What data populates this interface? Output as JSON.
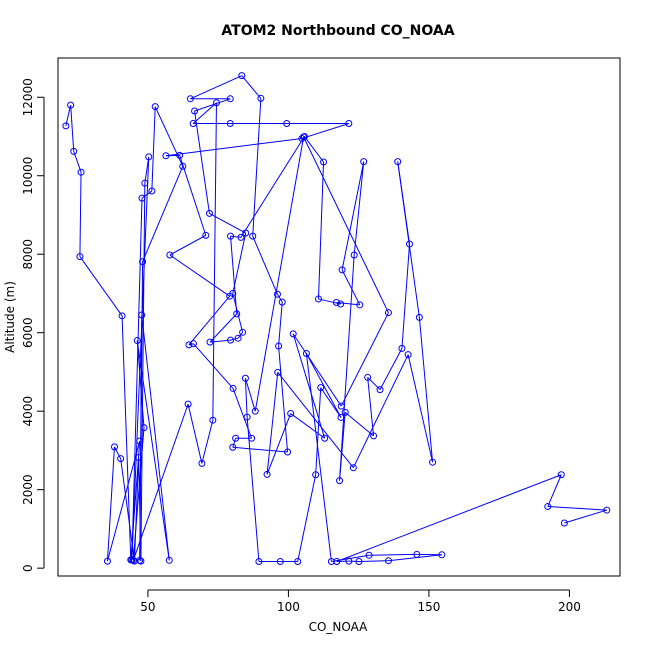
{
  "chart_data": {
    "type": "line",
    "title": "ATOM2 Northbound CO_NOAA",
    "xlabel": "CO_NOAA",
    "ylabel": "Altitude (m)",
    "xlim": [
      18,
      218
    ],
    "ylim": [
      -200,
      13000
    ],
    "x_ticks": [
      50,
      100,
      150,
      200
    ],
    "y_ticks": [
      0,
      2000,
      4000,
      6000,
      8000,
      10000,
      12000
    ],
    "line_color": "#0000ff",
    "marker": "open-circle",
    "points": [
      [
        20.8,
        11270
      ],
      [
        22.5,
        11800
      ],
      [
        23.6,
        10620
      ],
      [
        26.2,
        10090
      ],
      [
        25.8,
        7940
      ],
      [
        40.8,
        6430
      ],
      [
        43.9,
        210
      ],
      [
        47.1,
        3240
      ],
      [
        35.6,
        180
      ],
      [
        38.1,
        3090
      ],
      [
        40.3,
        2790
      ],
      [
        45.2,
        180
      ],
      [
        46.7,
        2820
      ],
      [
        47.5,
        180
      ],
      [
        48.9,
        9810
      ],
      [
        50.3,
        10480
      ],
      [
        44.3,
        210
      ],
      [
        47.9,
        9430
      ],
      [
        51.4,
        9610
      ],
      [
        52.6,
        11760
      ],
      [
        62.4,
        10240
      ],
      [
        48.1,
        7810
      ],
      [
        47.1,
        200
      ],
      [
        47.8,
        6450
      ],
      [
        57.6,
        200
      ],
      [
        46.2,
        5800
      ],
      [
        48.6,
        3580
      ],
      [
        44.8,
        200
      ],
      [
        64.3,
        4180
      ],
      [
        69.2,
        2670
      ],
      [
        73.1,
        3770
      ],
      [
        74.4,
        11860
      ],
      [
        66.1,
        11330
      ],
      [
        79.3,
        11330
      ],
      [
        99.4,
        11330
      ],
      [
        121.5,
        11330
      ],
      [
        104.8,
        10950
      ],
      [
        56.4,
        10510
      ],
      [
        61.3,
        10520
      ],
      [
        70.6,
        8480
      ],
      [
        57.8,
        7980
      ],
      [
        79.1,
        6930
      ],
      [
        64.6,
        5690
      ],
      [
        66.2,
        5720
      ],
      [
        80.3,
        4580
      ],
      [
        86.9,
        3310
      ],
      [
        81.2,
        3310
      ],
      [
        80.2,
        3080
      ],
      [
        99.7,
        2960
      ],
      [
        96.5,
        5660
      ],
      [
        97.8,
        6780
      ],
      [
        96.1,
        6980
      ],
      [
        87.3,
        8460
      ],
      [
        90.2,
        11970
      ],
      [
        83.4,
        12550
      ],
      [
        65.1,
        11960
      ],
      [
        79.3,
        11960
      ],
      [
        66.6,
        11650
      ],
      [
        71.9,
        9040
      ],
      [
        84.8,
        8540
      ],
      [
        80.2,
        7000
      ],
      [
        83.7,
        6010
      ],
      [
        82.1,
        5860
      ],
      [
        79.4,
        5810
      ],
      [
        72.1,
        5760
      ],
      [
        81.6,
        6480
      ],
      [
        79.4,
        8460
      ],
      [
        83.1,
        8430
      ],
      [
        105.7,
        11000
      ],
      [
        112.5,
        10350
      ],
      [
        110.7,
        6860
      ],
      [
        118.6,
        6730
      ],
      [
        117.1,
        6770
      ],
      [
        125.4,
        6710
      ],
      [
        119.1,
        7600
      ],
      [
        126.8,
        10360
      ],
      [
        123.4,
        7980
      ],
      [
        118.2,
        2230
      ],
      [
        120.2,
        3970
      ],
      [
        130.3,
        3370
      ],
      [
        128.2,
        4860
      ],
      [
        132.6,
        4550
      ],
      [
        140.4,
        5600
      ],
      [
        143.1,
        8260
      ],
      [
        138.9,
        10360
      ],
      [
        146.6,
        6390
      ],
      [
        151.3,
        2700
      ],
      [
        142.6,
        5440
      ],
      [
        123.1,
        2560
      ],
      [
        96.2,
        4990
      ],
      [
        92.4,
        2390
      ],
      [
        100.8,
        3940
      ],
      [
        112.9,
        3310
      ],
      [
        101.7,
        5970
      ],
      [
        118.8,
        4130
      ],
      [
        135.6,
        6510
      ],
      [
        105.4,
        10990
      ],
      [
        88.2,
        4000
      ],
      [
        84.7,
        4840
      ],
      [
        85.3,
        3850
      ],
      [
        89.5,
        170
      ],
      [
        97.1,
        170
      ],
      [
        103.3,
        170
      ],
      [
        109.7,
        2380
      ],
      [
        111.5,
        4600
      ],
      [
        118.7,
        3840
      ],
      [
        106.4,
        5470
      ],
      [
        115.3,
        170
      ],
      [
        128.7,
        330
      ],
      [
        145.7,
        350
      ],
      [
        154.6,
        340
      ],
      [
        135.6,
        190
      ],
      [
        125.1,
        170
      ],
      [
        121.5,
        180
      ],
      [
        117.2,
        170
      ],
      [
        197.1,
        2380
      ],
      [
        192.3,
        1570
      ],
      [
        213.3,
        1480
      ],
      [
        198.2,
        1150
      ]
    ]
  }
}
